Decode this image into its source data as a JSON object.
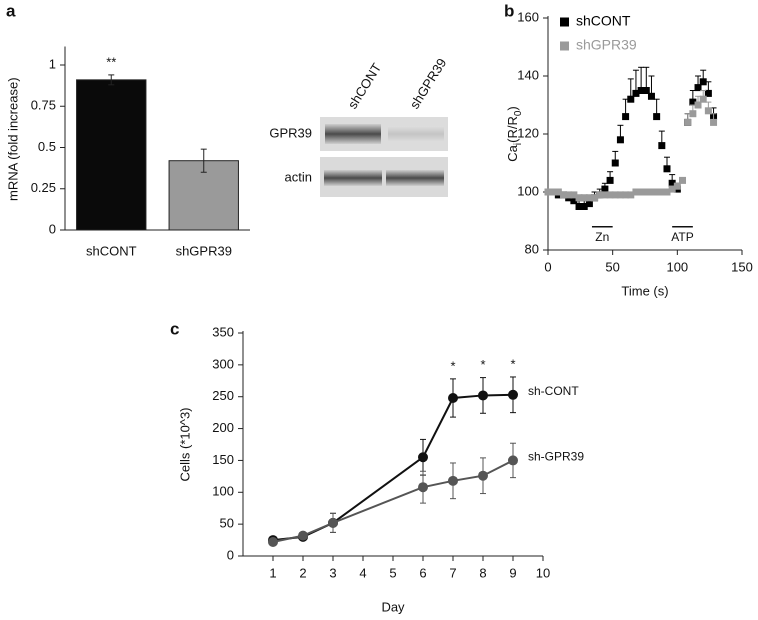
{
  "chart_data": [
    {
      "type": "bar",
      "panel": "a",
      "ylabel": "mRNA (fold increase)",
      "categories": [
        "shCONT",
        "shGPR39"
      ],
      "values": [
        0.91,
        0.42
      ],
      "errors": [
        0.03,
        0.07
      ],
      "colors": [
        "#0a0a0a",
        "#9a9a9a"
      ],
      "ylim": [
        0,
        1.1
      ],
      "yticks": [
        0,
        0.25,
        0.5,
        0.75,
        1
      ],
      "annotations": [
        {
          "text": "**",
          "x": "shCONT"
        }
      ]
    },
    {
      "type": "scatter",
      "panel": "b",
      "xlabel": "Time (s)",
      "ylabel": [
        "Ca",
        "i",
        "(R/R",
        "0",
        ")"
      ],
      "x": [
        0,
        4,
        8,
        12,
        16,
        20,
        24,
        28,
        32,
        36,
        40,
        44,
        48,
        52,
        56,
        60,
        64,
        68,
        72,
        76,
        80,
        84,
        88,
        92,
        96,
        100,
        104,
        108,
        112,
        116,
        120,
        124,
        128
      ],
      "series": [
        {
          "name": "shCONT",
          "color": "#000000",
          "values": [
            100,
            100,
            99,
            99,
            98,
            97,
            95,
            95,
            96,
            98,
            99,
            101,
            104,
            110,
            118,
            126,
            132,
            134,
            135,
            135,
            133,
            126,
            116,
            108,
            103,
            101,
            null,
            124,
            131,
            136,
            138,
            134,
            126
          ],
          "errors": [
            1,
            1,
            1,
            1,
            1,
            1,
            2,
            2,
            2,
            2,
            2,
            2,
            3,
            4,
            5,
            6,
            7,
            8,
            8,
            8,
            7,
            6,
            5,
            4,
            3,
            2,
            null,
            3,
            4,
            4,
            4,
            4,
            3
          ]
        },
        {
          "name": "shGPR39",
          "color": "#9a9a9a",
          "values": [
            100,
            100,
            100,
            99,
            99,
            99,
            98,
            98,
            98,
            98,
            99,
            99,
            99,
            99,
            99,
            99,
            99,
            100,
            100,
            100,
            100,
            100,
            100,
            100,
            101,
            102,
            104,
            124,
            127,
            130,
            132,
            128,
            124
          ],
          "errors": [
            1,
            1,
            1,
            1,
            1,
            1,
            1,
            1,
            1,
            1,
            1,
            1,
            1,
            1,
            1,
            1,
            1,
            1,
            1,
            1,
            1,
            1,
            1,
            1,
            1,
            1,
            1,
            3,
            3,
            3,
            3,
            3,
            3
          ]
        }
      ],
      "xlim": [
        0,
        150
      ],
      "xticks": [
        0,
        50,
        100,
        150
      ],
      "ylim": [
        80,
        160
      ],
      "yticks": [
        80,
        100,
        120,
        140,
        160
      ],
      "legend": "top-left",
      "annotations": [
        {
          "text": "Zn",
          "x": [
            34,
            50
          ],
          "y": 88
        },
        {
          "text": "ATP",
          "x": [
            96,
            112
          ],
          "y": 88
        }
      ]
    },
    {
      "type": "line",
      "panel": "c",
      "xlabel": "Day",
      "ylabel": "Cells  (*10^3)",
      "x": [
        1,
        2,
        3,
        6,
        7,
        8,
        9
      ],
      "series": [
        {
          "name": "sh-CONT",
          "color": "#111111",
          "values": [
            25,
            30,
            52,
            155,
            248,
            252,
            253
          ],
          "errors": [
            5,
            5,
            15,
            28,
            30,
            28,
            28
          ]
        },
        {
          "name": "sh-GPR39",
          "color": "#555555",
          "values": [
            22,
            32,
            52,
            108,
            118,
            126,
            150
          ],
          "errors": [
            5,
            5,
            15,
            25,
            28,
            28,
            27
          ]
        }
      ],
      "xlim": [
        0,
        10
      ],
      "xticks": [
        1,
        2,
        3,
        4,
        5,
        6,
        7,
        8,
        9,
        10
      ],
      "ylim": [
        0,
        350
      ],
      "yticks": [
        0,
        50,
        100,
        150,
        200,
        250,
        300,
        350
      ],
      "annotations": [
        {
          "text": "*",
          "x": 7
        },
        {
          "text": "*",
          "x": 8
        },
        {
          "text": "*",
          "x": 9
        }
      ]
    }
  ],
  "blot": {
    "lanes": [
      "shCONT",
      "shGPR39"
    ],
    "rows": [
      "GPR39",
      "actin"
    ]
  }
}
